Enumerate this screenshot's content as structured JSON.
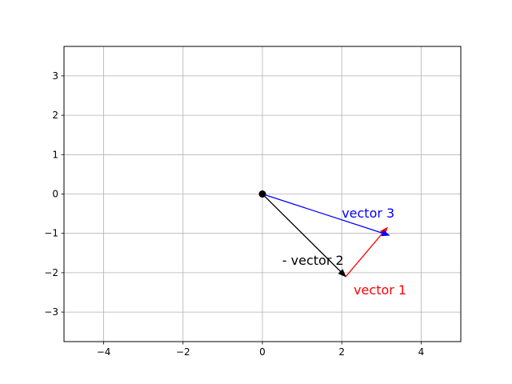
{
  "chart_data": {
    "type": "scatter",
    "title": "",
    "xlabel": "",
    "ylabel": "",
    "xlim": [
      -5,
      5
    ],
    "ylim": [
      -3.75,
      3.75
    ],
    "xticks": [
      -4,
      -2,
      0,
      2,
      4
    ],
    "yticks": [
      -3,
      -2,
      -1,
      0,
      1,
      2,
      3
    ],
    "xtick_labels": [
      "−4",
      "−2",
      "0",
      "2",
      "4"
    ],
    "ytick_labels": [
      "−3",
      "−2",
      "−1",
      "0",
      "1",
      "2",
      "3"
    ],
    "grid": true,
    "origin_point": {
      "x": 0,
      "y": 0
    },
    "vectors": [
      {
        "label": "- vector 2",
        "color": "#000000",
        "x0": 0,
        "y0": 0,
        "x1": 2.1,
        "y1": -2.1
      },
      {
        "label": "vector 1",
        "color": "#ff0000",
        "x0": 2.1,
        "y0": -2.1,
        "x1": 3.15,
        "y1": -0.85
      },
      {
        "label": "vector 3",
        "color": "#0000ff",
        "x0": 0,
        "y0": 0,
        "x1": 3.2,
        "y1": -1.05
      }
    ]
  }
}
